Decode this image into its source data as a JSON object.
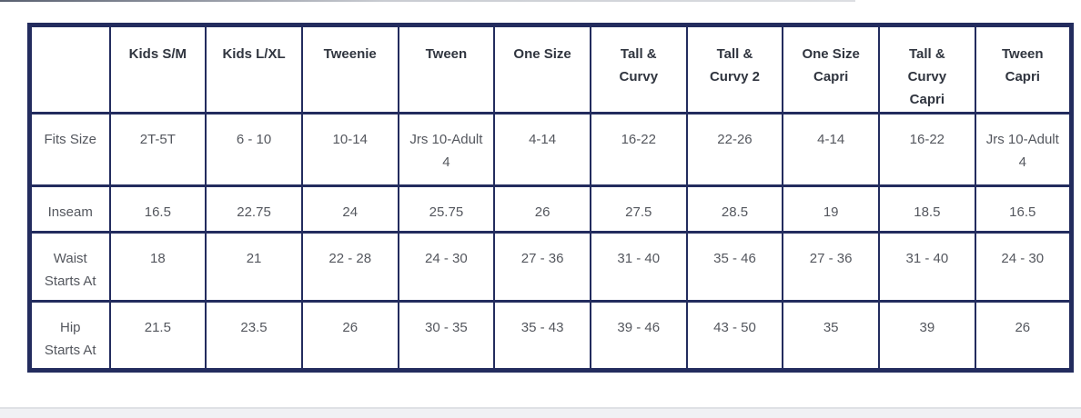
{
  "page": {
    "background": "#ffffff",
    "border_navy": "#232c5e",
    "header_text_color": "#30353f",
    "body_text_color": "#54575e",
    "bottom_band_color": "#f0f1f4"
  },
  "chart_data": {
    "type": "table",
    "title": "",
    "columns": [
      "",
      "Kids S/M",
      "Kids L/XL",
      "Tweenie",
      "Tween",
      "One Size",
      "Tall & Curvy",
      "Tall & Curvy 2",
      "One Size Capri",
      "Tall & Curvy Capri",
      "Tween Capri"
    ],
    "rows": [
      {
        "label": "Fits Size",
        "values": [
          "2T-5T",
          "6 - 10",
          "10-14",
          "Jrs 10-Adult 4",
          "4-14",
          "16-22",
          "22-26",
          "4-14",
          "16-22",
          "Jrs 10-Adult 4"
        ]
      },
      {
        "label": "Inseam",
        "values": [
          "16.5",
          "22.75",
          "24",
          "25.75",
          "26",
          "27.5",
          "28.5",
          "19",
          "18.5",
          "16.5"
        ]
      },
      {
        "label": "Waist Starts At",
        "values": [
          "18",
          "21",
          "22 - 28",
          "24 - 30",
          "27 - 36",
          "31 - 40",
          "35 - 46",
          "27 - 36",
          "31 - 40",
          "24 - 30"
        ]
      },
      {
        "label": "Hip Starts At",
        "values": [
          "21.5",
          "23.5",
          "26",
          "30 - 35",
          "35 - 43",
          "39 - 46",
          "43 - 50",
          "35",
          "39",
          "26"
        ]
      }
    ],
    "row_classes": [
      "r-fits",
      "r-inseam",
      "r-waist",
      "r-hip"
    ]
  }
}
